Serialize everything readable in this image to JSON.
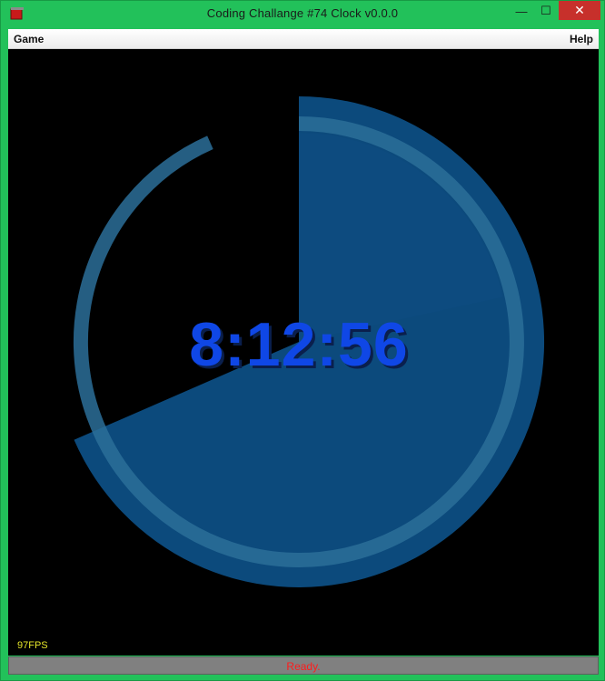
{
  "window": {
    "title": "Coding Challange #74 Clock v0.0.0",
    "controls": {
      "minimize": "—",
      "maximize": "☐",
      "close": "✕"
    },
    "icon": "app-icon"
  },
  "menu": {
    "left": "Game",
    "right": "Help"
  },
  "clock": {
    "time": "8:12:56",
    "hours": 8,
    "minutes": 12,
    "seconds": 56,
    "colors": {
      "arc": "#0c4a7c",
      "inner_arc": "#0d4b80",
      "seconds_highlight": "#2c6e99",
      "time_text": "#0f47e6"
    }
  },
  "fps": "97FPS",
  "status": "Ready."
}
